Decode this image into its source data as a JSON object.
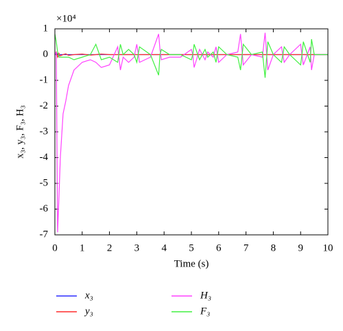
{
  "chart_data": {
    "type": "line",
    "y_axis_label": "x₃, y₃, F₃, H₃",
    "x_axis_label": "Time (s)",
    "y_scale_label": "×10⁴",
    "x": [
      0,
      0.05,
      0.1,
      0.15,
      0.2,
      0.3,
      0.4,
      0.5,
      0.7,
      1.0,
      1.3,
      1.5,
      1.7,
      2.0,
      2.3,
      2.4,
      2.5,
      2.7,
      2.9,
      3.0,
      3.1,
      3.5,
      3.8,
      3.85,
      3.9,
      4.2,
      4.6,
      5.0,
      5.05,
      5.1,
      5.3,
      5.5,
      5.6,
      5.8,
      5.9,
      6.0,
      6.3,
      6.7,
      6.8,
      6.9,
      7.2,
      7.6,
      7.7,
      7.8,
      8.0,
      8.3,
      8.4,
      8.6,
      9.0,
      9.05,
      9.1,
      9.35,
      9.4,
      9.5,
      10
    ],
    "series": [
      {
        "name": "x₃",
        "color": "#2b2bff",
        "values": [
          0,
          0,
          0.05,
          -0.05,
          0,
          0,
          0,
          0,
          0,
          0,
          0,
          0,
          0,
          0,
          0,
          0,
          0,
          0,
          0,
          0,
          0,
          0,
          0,
          0,
          0,
          0,
          0,
          0,
          0,
          0,
          0,
          0,
          0,
          0,
          0,
          0,
          0,
          0,
          0,
          0,
          0,
          0,
          0,
          0,
          0,
          0,
          0,
          0,
          0,
          0,
          0,
          0,
          0,
          0,
          0
        ]
      },
      {
        "name": "y₃",
        "color": "#ff2b2b",
        "values": [
          0,
          0.1,
          -0.1,
          0.05,
          -0.05,
          0,
          0.03,
          -0.03,
          0,
          0.02,
          -0.02,
          0,
          0.02,
          0,
          0,
          0,
          0,
          0,
          0,
          0,
          0,
          0,
          0,
          0,
          0,
          0,
          0,
          0,
          0,
          0,
          0,
          0,
          0,
          0,
          0,
          0,
          0,
          0,
          0,
          0,
          0,
          0,
          0,
          0,
          0,
          0,
          0,
          0,
          0,
          0,
          0,
          0,
          0,
          0,
          0
        ]
      },
      {
        "name": "H₃",
        "color": "#ff40ff",
        "values": [
          0,
          0.1,
          -6.9,
          -5.5,
          -4.0,
          -2.3,
          -1.8,
          -1.2,
          -0.6,
          -0.3,
          -0.2,
          -0.3,
          -0.5,
          -0.4,
          0.3,
          -0.6,
          -0.1,
          -0.3,
          -0.1,
          0.4,
          -0.3,
          -0.1,
          0.8,
          0.2,
          -0.2,
          -0.1,
          -0.1,
          0.2,
          0,
          -0.5,
          0.2,
          -0.2,
          0.1,
          -0.1,
          0.3,
          -0.3,
          0,
          0.1,
          0.8,
          -0.4,
          0,
          -0.1,
          0.85,
          -0.6,
          0,
          0.3,
          -0.3,
          0,
          0.4,
          0,
          -0.4,
          0.3,
          -0.6,
          0,
          0
        ]
      },
      {
        "name": "F₃",
        "color": "#40f040",
        "values": [
          0.8,
          0.5,
          0.1,
          -0.1,
          -0.1,
          -0.1,
          -0.1,
          -0.1,
          -0.2,
          -0.1,
          0,
          0.4,
          -0.2,
          -0.1,
          -0.3,
          0.4,
          0,
          0.2,
          0,
          -0.3,
          0.3,
          0,
          -0.8,
          0,
          0.2,
          0,
          0,
          -0.2,
          0,
          0.4,
          -0.2,
          0.2,
          -0.1,
          0.1,
          -0.3,
          0.3,
          0,
          -0.1,
          -0.6,
          0.4,
          0,
          0.1,
          -0.9,
          0.5,
          0,
          -0.3,
          0.3,
          0,
          -0.4,
          0,
          0.5,
          -0.3,
          0.6,
          0,
          0
        ]
      }
    ],
    "xlim": [
      0,
      10
    ],
    "xticks": [
      0,
      1,
      2,
      3,
      4,
      5,
      6,
      7,
      8,
      9,
      10
    ],
    "ylim": [
      -7,
      1
    ],
    "yticks": [
      -7,
      -6,
      -5,
      -4,
      -3,
      -2,
      -1,
      0,
      1
    ]
  }
}
